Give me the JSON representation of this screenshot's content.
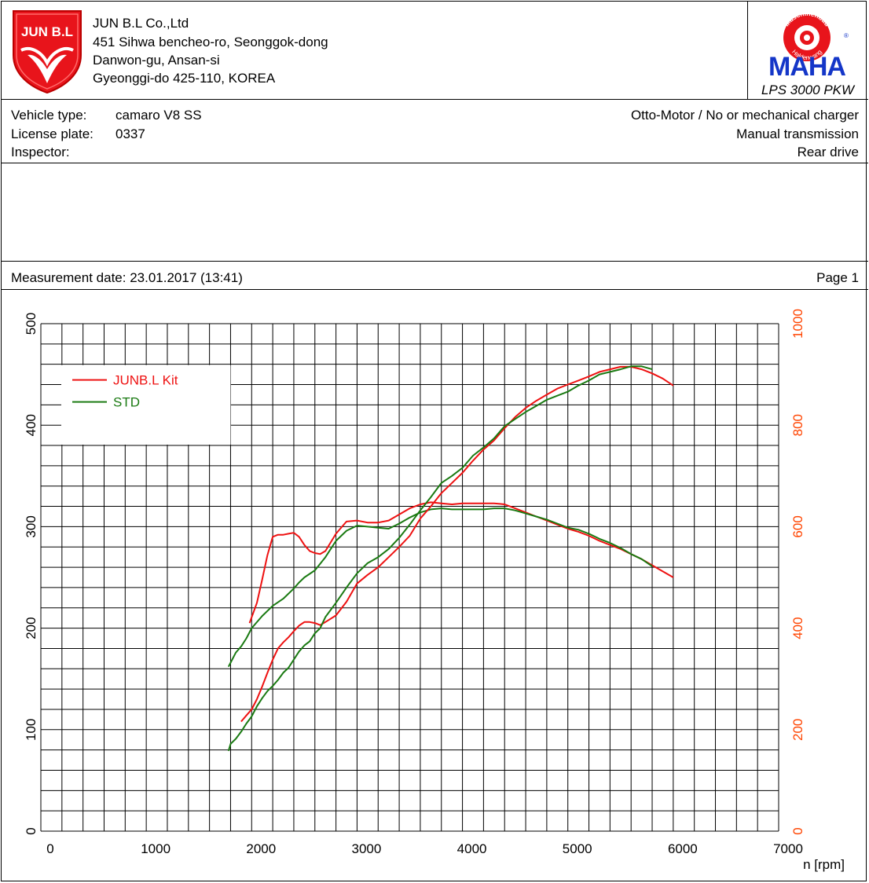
{
  "header": {
    "company_logo_text": "JUN B.L",
    "company_lines": [
      "JUN B.L Co.,Ltd",
      "451 Sihwa bencheo-ro, Seonggok-dong",
      "Danwon-gu, Ansan-si",
      "Gyeonggi-do 425-110, KOREA"
    ],
    "maha_logo_text": "MAHA",
    "maha_ring_top": "Maschinenbau",
    "maha_ring_bottom": "Haldenwang",
    "device": "LPS 3000 PKW"
  },
  "vehicle": {
    "type_label": "Vehicle type:",
    "type_value": "camaro V8 SS",
    "plate_label": "License plate:",
    "plate_value": "0337",
    "inspector_label": "Inspector:",
    "engine": "Otto-Motor / No or mechanical charger",
    "transmission": "Manual transmission",
    "drive": "Rear drive"
  },
  "measurement": {
    "date_label": "Measurement date: 23.01.2017 (13:41)",
    "page_label": "Page 1"
  },
  "colors": {
    "kit": "#ee1111",
    "std": "#1a7a12",
    "right_axis": "#ff4400",
    "grid": "#000000"
  },
  "chart_data": {
    "type": "line",
    "xlabel": "n [rpm]",
    "xlim": [
      0,
      7000
    ],
    "x_ticks": [
      0,
      1000,
      2000,
      3000,
      4000,
      5000,
      6000,
      7000
    ],
    "ylim_left": [
      0,
      500
    ],
    "y_ticks_left": [
      0,
      100,
      200,
      300,
      400,
      500
    ],
    "ylim_right": [
      0,
      1000
    ],
    "y_ticks_right": [
      0,
      200,
      400,
      600,
      800,
      1000
    ],
    "grid": true,
    "legend_position": "top-left",
    "legend": [
      "JUNB.L Kit",
      "STD"
    ],
    "series": [
      {
        "name": "JUNB.L Kit",
        "curve": "upper",
        "color": "#ee1111",
        "x": [
          1980,
          2050,
          2100,
          2150,
          2200,
          2250,
          2300,
          2350,
          2400,
          2450,
          2500,
          2550,
          2600,
          2650,
          2700,
          2800,
          2900,
          3000,
          3100,
          3200,
          3300,
          3400,
          3500,
          3600,
          3700,
          3800,
          3900,
          4000,
          4100,
          4200,
          4300,
          4400,
          4500,
          4600,
          4700,
          4800,
          4900,
          5000,
          5100,
          5200,
          5300,
          5400,
          5500,
          5600,
          5700,
          5800,
          5900,
          6000
        ],
        "y": [
          205,
          225,
          248,
          272,
          290,
          292,
          292,
          293,
          294,
          290,
          282,
          276,
          274,
          273,
          276,
          293,
          305,
          306,
          304,
          304,
          306,
          312,
          318,
          322,
          324,
          323,
          322,
          323,
          323,
          323,
          323,
          322,
          318,
          314,
          310,
          306,
          302,
          298,
          295,
          291,
          286,
          282,
          278,
          273,
          268,
          262,
          256,
          250
        ]
      },
      {
        "name": "STD",
        "curve": "upper",
        "color": "#1a7a12",
        "x": [
          1780,
          1800,
          1850,
          1900,
          1950,
          2000,
          2100,
          2200,
          2300,
          2400,
          2450,
          2500,
          2600,
          2700,
          2800,
          2900,
          3000,
          3100,
          3200,
          3300,
          3400,
          3500,
          3600,
          3700,
          3800,
          3900,
          4000,
          4100,
          4200,
          4300,
          4400,
          4500,
          4600,
          4700,
          4800,
          4900,
          5000,
          5100,
          5200,
          5300,
          5400,
          5500,
          5600,
          5700,
          5800
        ],
        "y": [
          162,
          166,
          176,
          182,
          190,
          200,
          212,
          222,
          229,
          239,
          245,
          250,
          257,
          270,
          286,
          296,
          301,
          300,
          299,
          298,
          303,
          309,
          314,
          317,
          318,
          317,
          317,
          317,
          317,
          318,
          318,
          316,
          313,
          310,
          307,
          303,
          299,
          297,
          293,
          288,
          284,
          279,
          273,
          268,
          261
        ]
      },
      {
        "name": "JUNB.L Kit",
        "curve": "lower",
        "color": "#ee1111",
        "x": [
          1900,
          1950,
          2000,
          2050,
          2100,
          2150,
          2200,
          2250,
          2300,
          2350,
          2400,
          2450,
          2500,
          2550,
          2600,
          2650,
          2700,
          2800,
          2900,
          3000,
          3100,
          3200,
          3300,
          3400,
          3500,
          3600,
          3700,
          3800,
          3900,
          4000,
          4100,
          4200,
          4300,
          4400,
          4500,
          4600,
          4700,
          4800,
          4900,
          5000,
          5100,
          5200,
          5300,
          5400,
          5500,
          5600,
          5700,
          5800,
          5900,
          6000
        ],
        "y": [
          216,
          228,
          240,
          260,
          285,
          312,
          338,
          360,
          372,
          382,
          394,
          405,
          412,
          412,
          410,
          406,
          412,
          425,
          452,
          488,
          505,
          520,
          540,
          560,
          582,
          616,
          640,
          666,
          686,
          706,
          730,
          752,
          770,
          794,
          816,
          834,
          848,
          860,
          872,
          880,
          888,
          896,
          905,
          910,
          915,
          915,
          910,
          902,
          892,
          878
        ]
      },
      {
        "name": "STD",
        "curve": "lower",
        "color": "#1a7a12",
        "x": [
          1780,
          1800,
          1850,
          1900,
          1950,
          2000,
          2050,
          2100,
          2150,
          2200,
          2250,
          2300,
          2350,
          2400,
          2450,
          2500,
          2550,
          2600,
          2650,
          2700,
          2800,
          2900,
          3000,
          3100,
          3200,
          3300,
          3400,
          3500,
          3600,
          3700,
          3800,
          3900,
          4000,
          4100,
          4200,
          4300,
          4400,
          4500,
          4600,
          4700,
          4800,
          4900,
          5000,
          5100,
          5200,
          5300,
          5400,
          5500,
          5600,
          5700,
          5800
        ],
        "y": [
          158,
          172,
          182,
          196,
          212,
          226,
          246,
          262,
          276,
          286,
          298,
          312,
          322,
          338,
          354,
          366,
          374,
          390,
          400,
          422,
          450,
          480,
          508,
          528,
          540,
          556,
          578,
          604,
          632,
          658,
          686,
          700,
          716,
          740,
          756,
          774,
          798,
          812,
          826,
          838,
          850,
          858,
          866,
          878,
          888,
          900,
          905,
          910,
          916,
          916,
          910
        ]
      }
    ]
  }
}
